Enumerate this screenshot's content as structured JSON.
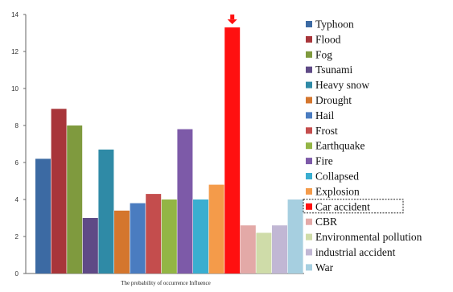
{
  "chart_data": {
    "type": "bar",
    "title": "",
    "xlabel": "The probability of occurrence  Influence",
    "ylabel": "",
    "ylim": [
      0,
      14
    ],
    "yticks": [
      0,
      2,
      4,
      6,
      8,
      10,
      12,
      14
    ],
    "grid": false,
    "legend_position": "right",
    "categories": [
      "Typhoon",
      "Flood",
      "Fog",
      "Tsunami",
      "Heavy snow",
      "Drought",
      "Hail",
      "Frost",
      "Earthquake",
      "Fire",
      "Collapsed",
      "Explosion",
      "Car accident",
      "CBR",
      "Environmental pollution",
      "industrial accident",
      "War"
    ],
    "values": [
      6.2,
      8.9,
      8.0,
      3.0,
      6.7,
      3.4,
      3.8,
      4.3,
      4.0,
      7.8,
      4.0,
      4.8,
      13.3,
      2.6,
      2.2,
      2.6,
      4.0
    ],
    "colors": [
      "#3c6aa3",
      "#a8353a",
      "#7f9a3e",
      "#5f4a86",
      "#2f8aa6",
      "#d4762d",
      "#4a7cc0",
      "#c44d4d",
      "#93b545",
      "#7d5aa8",
      "#3aaed0",
      "#f49b4a",
      "#ff1010",
      "#e3a9a7",
      "#cfdca9",
      "#c1b7d4",
      "#a6cfe0"
    ],
    "highlight": {
      "category": "Car accident",
      "marker": "arrow-down",
      "marker_color": "#ff1010",
      "legend_box": "dashed"
    }
  }
}
